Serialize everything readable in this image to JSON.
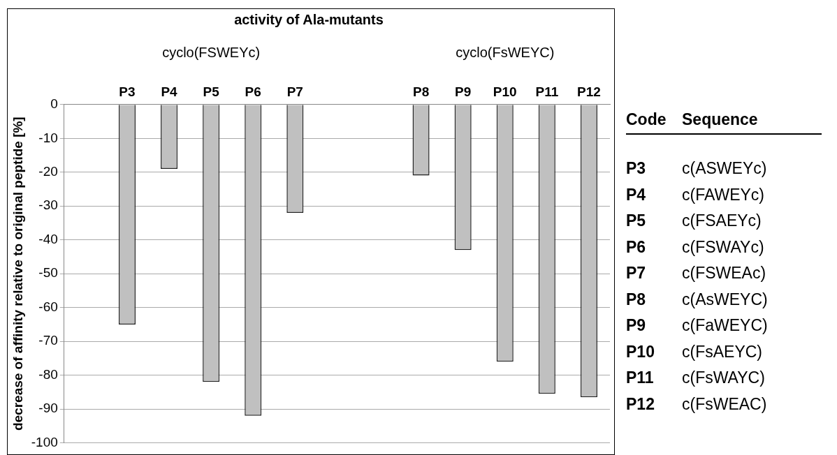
{
  "chart_data": {
    "type": "bar",
    "title": "activity of Ala-mutants",
    "ylabel": "decrease of affinity relative to original peptide [%]",
    "categories": [
      null,
      "P3",
      "P4",
      "P5",
      "P6",
      "P7",
      null,
      null,
      "P8",
      "P9",
      "P10",
      "P11",
      "P12"
    ],
    "values": [
      null,
      -65,
      -19,
      -82,
      -92,
      -32,
      null,
      null,
      -21,
      -43,
      -76,
      -85.5,
      -86.5
    ],
    "color": "#c0c0c0",
    "ylim": [
      -100,
      0
    ],
    "yticks": [
      -100,
      -90,
      -80,
      -70,
      -60,
      -50,
      -40,
      -30,
      -20,
      -10,
      0
    ],
    "grid": "y",
    "legend": false,
    "annotations": [
      "cyclo(FSWEYc)",
      "cyclo(FsWEYC)",
      "Code",
      "Sequence",
      "P3",
      "c(ASWEYc)",
      "P4",
      "c(FAWEYc)",
      "P5",
      "c(FSAEYc)",
      "P6",
      "c(FSWAYc)",
      "P7",
      "c(FSWEAc)",
      "P8",
      "c(AsWEYC)",
      "P9",
      "c(FaWEYC)",
      "P10",
      "c(FsAEYC)",
      "P11",
      "c(FsWAYC)",
      "P12",
      "c(FsWEAC)"
    ]
  }
}
